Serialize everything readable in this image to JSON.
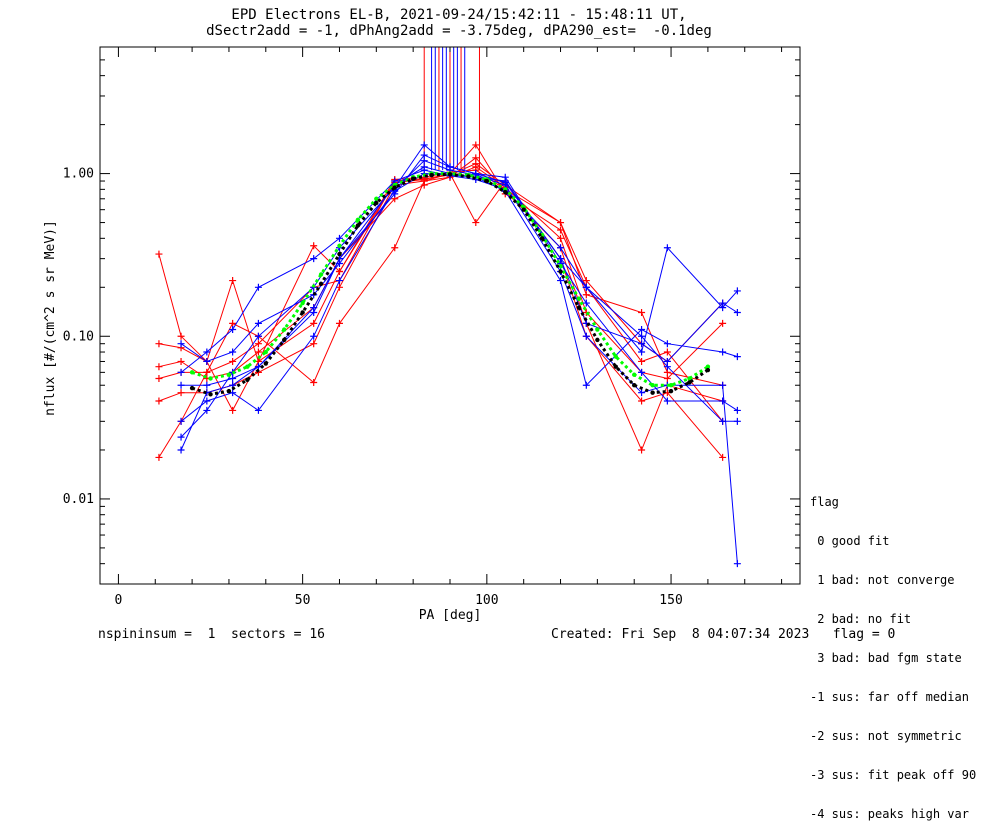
{
  "title_line1": "EPD Electrons EL-B, 2021-09-24/15:42:11 - 15:48:11 UT,",
  "title_line2": "dSectr2add = -1, dPhAng2add = -3.75deg, dPA290_est=  -0.1deg",
  "footer_left": "nspininsum =  1  sectors = 16",
  "footer_right": "Created: Fri Sep  8 04:07:34 2023   flag = 0",
  "flag_legend": {
    "title": "flag",
    "items": [
      " 0 good fit",
      " 1 bad: not converge",
      " 2 bad: no fit",
      " 3 bad: bad fgm state",
      "-1 sus: far off median",
      "-2 sus: not symmetric",
      "-3 sus: fit peak off 90",
      "-4 sus: peaks high var"
    ]
  },
  "colors": {
    "red": "#ff0000",
    "blue": "#0000ff",
    "green": "#00ff00",
    "black": "#000000"
  },
  "chart_data": {
    "type": "line",
    "xlabel": "PA [deg]",
    "ylabel": "nflux [#/(cm^2 s sr MeV)]",
    "xlim": [
      -5,
      185
    ],
    "ylim": [
      0.003,
      6.0
    ],
    "yscale": "log",
    "xticks": [
      "0",
      "50",
      "100",
      "150"
    ],
    "xtick_values": [
      0,
      50,
      100,
      150
    ],
    "yticks": [
      "0.01",
      "0.10",
      "1.00"
    ],
    "ytick_values": [
      0.01,
      0.1,
      1.0
    ],
    "series": [
      {
        "color": "red",
        "marker": "+",
        "x": [
          11,
          17,
          24,
          31,
          38,
          53,
          60,
          75,
          83,
          90,
          97,
          105,
          120,
          127,
          142,
          149,
          164
        ],
        "y": [
          0.32,
          0.1,
          0.07,
          0.22,
          0.07,
          0.36,
          0.25,
          0.92,
          0.95,
          1.02,
          1.05,
          0.8,
          0.5,
          0.22,
          0.09,
          0.07,
          0.16
        ]
      },
      {
        "color": "red",
        "marker": "+",
        "x": [
          11,
          17,
          24,
          31,
          38,
          53,
          60,
          75,
          83,
          90,
          97,
          105,
          120,
          127,
          142,
          149,
          164
        ],
        "y": [
          0.065,
          0.07,
          0.055,
          0.06,
          0.08,
          0.15,
          0.3,
          0.7,
          0.85,
          0.95,
          1.25,
          0.78,
          0.35,
          0.12,
          0.02,
          0.05,
          0.04
        ]
      },
      {
        "color": "red",
        "marker": "+",
        "x": [
          11,
          17,
          24,
          31,
          38,
          53,
          60,
          75,
          83,
          90,
          97,
          105,
          120,
          127,
          142,
          149,
          164
        ],
        "y": [
          0.04,
          0.045,
          0.045,
          0.05,
          0.06,
          0.09,
          0.2,
          0.85,
          0.9,
          0.95,
          1.1,
          0.82,
          0.4,
          0.14,
          0.06,
          0.055,
          0.12
        ]
      },
      {
        "color": "red",
        "marker": "+",
        "x": [
          11,
          17,
          24,
          31,
          38,
          53,
          60,
          75,
          83,
          90,
          97,
          105,
          120,
          127,
          142,
          149,
          164
        ],
        "y": [
          0.018,
          0.03,
          0.06,
          0.12,
          0.1,
          0.052,
          0.12,
          0.35,
          0.9,
          1.0,
          0.5,
          0.9,
          0.3,
          0.1,
          0.04,
          0.045,
          0.018
        ]
      },
      {
        "color": "red",
        "marker": "+",
        "x": [
          11,
          17,
          24,
          31,
          38,
          53,
          60,
          75,
          83,
          90,
          97,
          105,
          120,
          127,
          142,
          149,
          164
        ],
        "y": [
          0.09,
          0.085,
          0.07,
          0.035,
          0.07,
          0.12,
          0.25,
          0.88,
          0.92,
          1.0,
          1.5,
          0.75,
          0.45,
          0.2,
          0.07,
          0.08,
          0.03
        ]
      },
      {
        "color": "red",
        "marker": "+",
        "x": [
          11,
          17,
          24,
          31,
          38,
          53,
          60,
          75,
          83,
          90,
          97,
          105,
          120,
          127,
          142,
          149,
          164
        ],
        "y": [
          0.055,
          0.06,
          0.06,
          0.07,
          0.09,
          0.2,
          0.22,
          0.9,
          0.93,
          0.98,
          1.15,
          0.85,
          0.5,
          0.18,
          0.14,
          0.06,
          0.05
        ]
      },
      {
        "color": "blue",
        "marker": "+",
        "x": [
          17,
          24,
          31,
          38,
          53,
          60,
          75,
          83,
          90,
          97,
          105,
          120,
          127,
          142,
          149,
          164,
          168
        ],
        "y": [
          0.05,
          0.05,
          0.055,
          0.065,
          0.15,
          0.3,
          0.85,
          1.1,
          1.0,
          0.95,
          0.9,
          0.3,
          0.2,
          0.08,
          0.35,
          0.15,
          0.19
        ]
      },
      {
        "color": "blue",
        "marker": "+",
        "x": [
          17,
          24,
          31,
          38,
          53,
          60,
          75,
          83,
          90,
          97,
          105,
          120,
          127,
          142,
          149,
          164,
          168
        ],
        "y": [
          0.03,
          0.04,
          0.045,
          0.035,
          0.1,
          0.22,
          0.8,
          1.2,
          1.05,
          0.98,
          0.85,
          0.25,
          0.1,
          0.045,
          0.05,
          0.05,
          0.004
        ]
      },
      {
        "color": "blue",
        "marker": "+",
        "x": [
          17,
          24,
          31,
          38,
          53,
          60,
          75,
          83,
          90,
          97,
          105,
          120,
          127,
          142,
          149,
          164,
          168
        ],
        "y": [
          0.02,
          0.045,
          0.05,
          0.065,
          0.14,
          0.3,
          0.75,
          1.3,
          1.1,
          1.0,
          0.88,
          0.3,
          0.12,
          0.09,
          0.07,
          0.16,
          0.14
        ]
      },
      {
        "color": "blue",
        "marker": "+",
        "x": [
          17,
          24,
          31,
          38,
          53,
          60,
          75,
          83,
          90,
          97,
          105,
          120,
          127,
          142,
          149,
          164,
          168
        ],
        "y": [
          0.06,
          0.08,
          0.11,
          0.2,
          0.3,
          0.4,
          0.9,
          1.05,
          0.97,
          0.92,
          0.8,
          0.35,
          0.2,
          0.1,
          0.065,
          0.03,
          0.03
        ]
      },
      {
        "color": "blue",
        "marker": "+",
        "x": [
          17,
          24,
          31,
          38,
          53,
          60,
          75,
          83,
          90,
          97,
          105,
          120,
          127,
          142,
          149,
          164,
          168
        ],
        "y": [
          0.024,
          0.035,
          0.06,
          0.1,
          0.2,
          0.35,
          0.82,
          1.5,
          1.1,
          1.0,
          0.95,
          0.28,
          0.16,
          0.06,
          0.04,
          0.04,
          0.035
        ]
      },
      {
        "color": "blue",
        "marker": "+",
        "x": [
          17,
          24,
          31,
          38,
          53,
          60,
          75,
          83,
          90,
          97,
          105,
          120,
          127,
          142,
          149,
          164,
          168
        ],
        "y": [
          0.09,
          0.07,
          0.08,
          0.12,
          0.18,
          0.28,
          0.78,
          1.0,
          0.98,
          0.95,
          0.78,
          0.22,
          0.05,
          0.11,
          0.09,
          0.08,
          0.075
        ]
      },
      {
        "color": "green",
        "marker": "dot",
        "x": [
          20,
          25,
          30,
          35,
          40,
          45,
          50,
          55,
          60,
          65,
          70,
          75,
          80,
          85,
          90,
          95,
          100,
          105,
          110,
          115,
          120,
          125,
          130,
          135,
          140,
          145,
          150,
          155,
          160
        ],
        "y": [
          0.06,
          0.055,
          0.058,
          0.065,
          0.08,
          0.11,
          0.16,
          0.24,
          0.36,
          0.52,
          0.7,
          0.85,
          0.95,
          1.0,
          1.0,
          0.98,
          0.92,
          0.8,
          0.62,
          0.42,
          0.27,
          0.17,
          0.11,
          0.075,
          0.058,
          0.05,
          0.05,
          0.055,
          0.065
        ]
      },
      {
        "color": "black",
        "marker": "dot",
        "x": [
          20,
          25,
          30,
          35,
          40,
          45,
          50,
          55,
          60,
          65,
          70,
          75,
          80,
          85,
          90,
          95,
          100,
          105,
          110,
          115,
          120,
          125,
          130,
          135,
          140,
          145,
          150,
          155,
          160
        ],
        "y": [
          0.048,
          0.044,
          0.046,
          0.054,
          0.068,
          0.095,
          0.14,
          0.21,
          0.32,
          0.48,
          0.66,
          0.82,
          0.93,
          0.98,
          0.99,
          0.96,
          0.9,
          0.77,
          0.6,
          0.4,
          0.25,
          0.15,
          0.095,
          0.065,
          0.05,
          0.045,
          0.046,
          0.052,
          0.062
        ]
      }
    ]
  }
}
